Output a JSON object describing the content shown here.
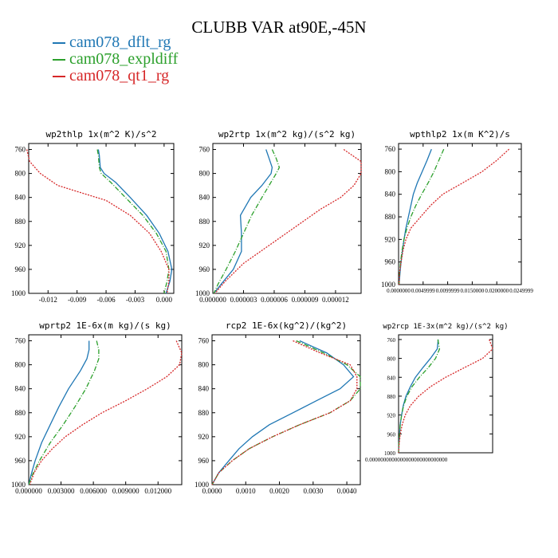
{
  "title": "CLUBB VAR at90E,-45N",
  "legend": [
    {
      "name": "cam078_dflt_rg",
      "color": "#1f77b4",
      "dash": "solid"
    },
    {
      "name": "cam078_expldiff",
      "color": "#2ca02c",
      "dash": "dashdot"
    },
    {
      "name": "cam078_qt1_rg",
      "color": "#d62728",
      "dash": "dotted"
    }
  ],
  "chart_data": [
    {
      "type": "line",
      "title": "wp2thlp  1x(m^2 K)/s^2",
      "ylim": [
        1000,
        750
      ],
      "yticks": [
        "760",
        "800",
        "840",
        "880",
        "920",
        "960",
        "1000"
      ],
      "xlim": [
        -0.014,
        0.001
      ],
      "xticks": [
        "-0.012",
        "-0.009",
        "-0.006",
        "-0.003",
        "0.000"
      ],
      "xtick_values": [
        -0.012,
        -0.009,
        -0.006,
        -0.003,
        0.0
      ],
      "series": [
        {
          "name": "cam078_dflt_rg",
          "y": [
            760,
            770,
            790,
            800,
            815,
            840,
            870,
            900,
            930,
            960,
            980,
            1000
          ],
          "x": [
            -0.0068,
            -0.0067,
            -0.0066,
            -0.0062,
            -0.005,
            -0.0035,
            -0.0018,
            -0.0005,
            0.0004,
            0.0008,
            0.0006,
            0.0002
          ]
        },
        {
          "name": "cam078_expldiff",
          "y": [
            760,
            770,
            790,
            800,
            815,
            840,
            870,
            900,
            930,
            960,
            980,
            1000
          ],
          "x": [
            -0.0069,
            -0.0068,
            -0.0067,
            -0.0065,
            -0.0055,
            -0.004,
            -0.0022,
            -0.0008,
            0.0002,
            0.0005,
            0.0003,
            0.0
          ]
        },
        {
          "name": "cam078_qt1_rg",
          "y": [
            760,
            780,
            800,
            820,
            830,
            845,
            870,
            900,
            930,
            960,
            980,
            1000
          ],
          "x": [
            -0.0142,
            -0.0139,
            -0.0128,
            -0.011,
            -0.009,
            -0.006,
            -0.0035,
            -0.0015,
            -0.0003,
            0.0005,
            0.0005,
            0.0003
          ]
        }
      ]
    },
    {
      "type": "line",
      "title": "wp2rtp  1x(m^2 kg)/(s^2 kg)",
      "ylim": [
        1000,
        750
      ],
      "yticks": [
        "760",
        "800",
        "840",
        "880",
        "920",
        "960",
        "1000"
      ],
      "xlim": [
        0,
        1.45e-05
      ],
      "xticks": [
        "0.000000",
        "0.000003",
        "0.000006",
        "0.000009",
        "0.000012"
      ],
      "xtick_values": [
        0,
        3e-06,
        6e-06,
        9e-06,
        1.2e-05
      ],
      "series": [
        {
          "name": "cam078_dflt_rg",
          "y": [
            760,
            775,
            790,
            800,
            820,
            840,
            870,
            900,
            930,
            960,
            985,
            1000
          ],
          "x": [
            5.2e-06,
            5.5e-06,
            5.8e-06,
            5.7e-06,
            4.8e-06,
            3.7e-06,
            2.7e-06,
            2.8e-06,
            2.8e-06,
            2e-06,
            8e-07,
            1e-07
          ]
        },
        {
          "name": "cam078_expldiff",
          "y": [
            760,
            775,
            790,
            800,
            820,
            840,
            870,
            900,
            930,
            960,
            985,
            1000
          ],
          "x": [
            5.8e-06,
            6.2e-06,
            6.5e-06,
            6.2e-06,
            5.5e-06,
            4.8e-06,
            3.8e-06,
            3e-06,
            2.2e-06,
            1.3e-06,
            5e-07,
            1e-07
          ]
        },
        {
          "name": "cam078_qt1_rg",
          "y": [
            760,
            780,
            800,
            820,
            840,
            860,
            890,
            920,
            950,
            980,
            1000
          ],
          "x": [
            1.28e-05,
            1.45e-05,
            1.45e-05,
            1.38e-05,
            1.25e-05,
            1.05e-05,
            8e-06,
            5.5e-06,
            3e-06,
            1.2e-06,
            2e-07
          ]
        }
      ]
    },
    {
      "type": "line",
      "title": "wpthlp2  1x(m K^2)/s",
      "ylim": [
        1000,
        750
      ],
      "yticks": [
        "760",
        "800",
        "840",
        "880",
        "920",
        "960",
        "1000"
      ],
      "xlim": [
        0,
        0.025
      ],
      "xticks": [
        "0.0000000",
        "0.0049999",
        "0.0099999",
        "0.0150000",
        "0.0200000",
        "0.0249999"
      ],
      "xtick_values": [
        0,
        0.005,
        0.01,
        0.015,
        0.02,
        0.025
      ],
      "series": [
        {
          "name": "cam078_dflt_rg",
          "y": [
            760,
            780,
            800,
            820,
            840,
            860,
            880,
            900,
            920,
            940,
            960,
            980,
            1000
          ],
          "x": [
            0.0067,
            0.0058,
            0.0048,
            0.0038,
            0.003,
            0.0025,
            0.002,
            0.0015,
            0.0011,
            0.0008,
            0.0005,
            0.0003,
            0.0001
          ]
        },
        {
          "name": "cam078_expldiff",
          "y": [
            760,
            780,
            800,
            820,
            840,
            860,
            880,
            900,
            920,
            940,
            960,
            980,
            1000
          ],
          "x": [
            0.0092,
            0.0082,
            0.0072,
            0.006,
            0.0047,
            0.0035,
            0.0025,
            0.0017,
            0.0011,
            0.0007,
            0.0004,
            0.0002,
            0.0001
          ]
        },
        {
          "name": "cam078_qt1_rg",
          "y": [
            760,
            780,
            800,
            820,
            840,
            860,
            880,
            900,
            920,
            940,
            960,
            980,
            1000
          ],
          "x": [
            0.0225,
            0.02,
            0.017,
            0.013,
            0.009,
            0.0065,
            0.0045,
            0.0025,
            0.0015,
            0.0009,
            0.0005,
            0.0002,
            0.0001
          ]
        }
      ]
    },
    {
      "type": "line",
      "title": "wprtp2  1E-6x(m kg)/(s kg)",
      "ylim": [
        1000,
        750
      ],
      "yticks": [
        "760",
        "800",
        "840",
        "880",
        "920",
        "960",
        "1000"
      ],
      "xlim": [
        0,
        0.0142
      ],
      "xticks": [
        "0.000000",
        "0.003000",
        "0.006000",
        "0.009000",
        "0.012000"
      ],
      "xtick_values": [
        0,
        0.003,
        0.006,
        0.009,
        0.012
      ],
      "series": [
        {
          "name": "cam078_dflt_rg",
          "y": [
            760,
            775,
            790,
            810,
            840,
            870,
            900,
            930,
            960,
            985,
            1000
          ],
          "x": [
            0.0056,
            0.0056,
            0.0054,
            0.0048,
            0.0037,
            0.0028,
            0.002,
            0.0012,
            0.0006,
            0.0002,
            0.0
          ]
        },
        {
          "name": "cam078_expldiff",
          "y": [
            760,
            775,
            790,
            810,
            840,
            870,
            900,
            930,
            960,
            985,
            1000
          ],
          "x": [
            0.0063,
            0.0065,
            0.0065,
            0.0061,
            0.0053,
            0.0043,
            0.0032,
            0.002,
            0.001,
            0.0003,
            0.0
          ]
        },
        {
          "name": "cam078_qt1_rg",
          "y": [
            760,
            780,
            800,
            820,
            840,
            860,
            880,
            900,
            920,
            940,
            960,
            980,
            1000
          ],
          "x": [
            0.0137,
            0.0142,
            0.014,
            0.0128,
            0.011,
            0.009,
            0.0068,
            0.005,
            0.0034,
            0.0022,
            0.0012,
            0.0005,
            0.0001
          ]
        }
      ]
    },
    {
      "type": "line",
      "title": "rcp2  1E-6x(kg^2)/(kg^2)",
      "ylim": [
        1000,
        750
      ],
      "yticks": [
        "760",
        "800",
        "840",
        "880",
        "920",
        "960",
        "1000"
      ],
      "xlim": [
        0,
        0.0044
      ],
      "xticks": [
        "0.0000",
        "0.0010",
        "0.0020",
        "0.0030",
        "0.0040"
      ],
      "xtick_values": [
        0,
        0.001,
        0.002,
        0.003,
        0.004
      ],
      "series": [
        {
          "name": "cam078_dflt_rg",
          "y": [
            760,
            780,
            800,
            820,
            840,
            860,
            880,
            900,
            920,
            940,
            960,
            980,
            1000
          ],
          "x": [
            0.0026,
            0.0034,
            0.0039,
            0.0042,
            0.0038,
            0.0031,
            0.0024,
            0.0017,
            0.0012,
            0.0008,
            0.0005,
            0.0002,
            0.0
          ]
        },
        {
          "name": "cam078_expldiff",
          "y": [
            760,
            780,
            800,
            820,
            840,
            860,
            880,
            900,
            920,
            940,
            960,
            980,
            1000
          ],
          "x": [
            0.0025,
            0.0033,
            0.004,
            0.0044,
            0.0044,
            0.0041,
            0.0035,
            0.0026,
            0.0018,
            0.0011,
            0.0006,
            0.0002,
            0.0
          ]
        },
        {
          "name": "cam078_qt1_rg",
          "y": [
            760,
            780,
            800,
            820,
            840,
            860,
            880,
            900,
            920,
            940,
            960,
            980,
            1000
          ],
          "x": [
            0.0024,
            0.0032,
            0.0041,
            0.0043,
            0.0043,
            0.0041,
            0.0035,
            0.0026,
            0.0018,
            0.0011,
            0.0006,
            0.0002,
            0.0
          ]
        }
      ]
    },
    {
      "type": "line",
      "title": "wp2rcp  1E-3x(m^2 kg)/(s^2 kg)",
      "ylim": [
        1000,
        750
      ],
      "yticks": [
        "760",
        "800",
        "840",
        "880",
        "920",
        "960",
        "1000"
      ],
      "xlim": [
        0,
        0.028
      ],
      "xticks": [
        "0.0000000000000000000000000000"
      ],
      "xtick_values": [
        0
      ],
      "series": [
        {
          "name": "cam078_dflt_rg",
          "y": [
            760,
            780,
            800,
            820,
            840,
            860,
            880,
            900,
            920,
            940,
            960,
            980,
            1000
          ],
          "x": [
            0.0118,
            0.0115,
            0.0095,
            0.0072,
            0.005,
            0.0035,
            0.0022,
            0.0014,
            0.0009,
            0.0005,
            0.0003,
            0.0001,
            0.0
          ]
        },
        {
          "name": "cam078_expldiff",
          "y": [
            760,
            780,
            800,
            820,
            840,
            860,
            880,
            900,
            920,
            940,
            960,
            980,
            1000
          ],
          "x": [
            0.0117,
            0.0122,
            0.011,
            0.0088,
            0.0062,
            0.004,
            0.0025,
            0.0015,
            0.0009,
            0.0005,
            0.0003,
            0.0001,
            0.0
          ]
        },
        {
          "name": "cam078_qt1_rg",
          "y": [
            760,
            780,
            800,
            820,
            840,
            860,
            880,
            900,
            920,
            940,
            960,
            980,
            1000
          ],
          "x": [
            0.027,
            0.028,
            0.025,
            0.0195,
            0.014,
            0.0095,
            0.006,
            0.0035,
            0.002,
            0.0011,
            0.0005,
            0.0002,
            0.0
          ]
        }
      ]
    }
  ]
}
